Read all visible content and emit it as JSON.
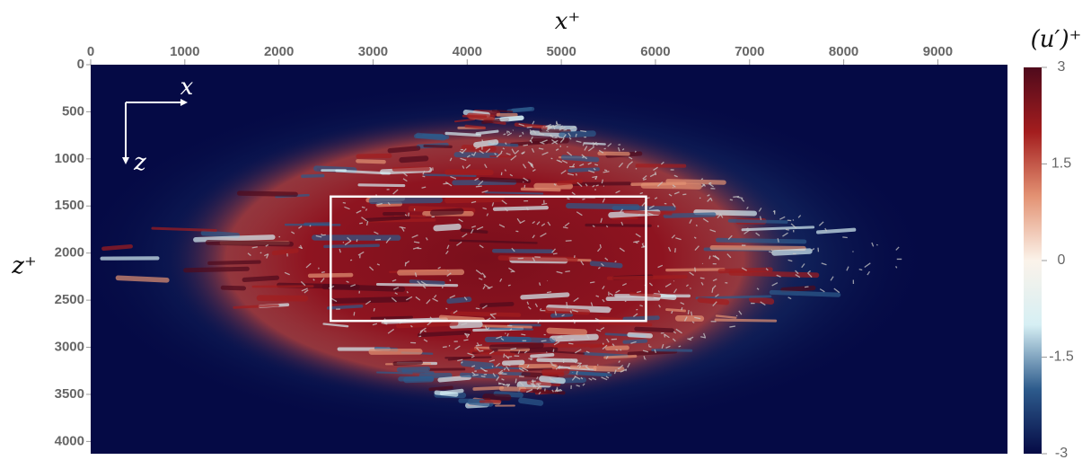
{
  "chart_data": {
    "type": "field",
    "xlabel": "x⁺",
    "ylabel": "z⁺",
    "xlim": [
      0,
      9740
    ],
    "xticks": [
      0,
      1000,
      2000,
      3000,
      4000,
      5000,
      6000,
      7000,
      8000,
      9000
    ],
    "ylim": [
      0,
      4130
    ],
    "yticks": [
      0,
      500,
      1000,
      1500,
      2000,
      2500,
      3000,
      3500,
      4000
    ],
    "y_reversed": true,
    "colorbar": {
      "label": "(u′)⁺",
      "lim": [
        -3,
        3
      ],
      "ticks": [
        3,
        1.5,
        0,
        -1.5,
        -3
      ],
      "colors": [
        "#050a45",
        "#2d5b8c",
        "#d6eff4",
        "#fbf3ea",
        "#e39273",
        "#a31d1e",
        "#4f0a1c"
      ]
    },
    "box": {
      "xlim": [
        2550,
        5900
      ],
      "ylim": [
        1400,
        2720
      ],
      "color": "#ffffff"
    },
    "inset_axes": {
      "x": "x",
      "z": "z"
    }
  }
}
